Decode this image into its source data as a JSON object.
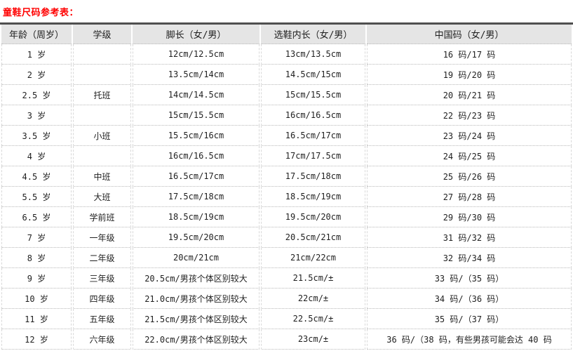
{
  "title": "童鞋尺码参考表：",
  "colors": {
    "title": "#ff0000",
    "header_background": "#e5e5e5",
    "table_top_border": "#4f4f4f",
    "row_border": "#b9b9b9",
    "cell_border": "#d8d8d8",
    "text": "#1f1f1f"
  },
  "table": {
    "headers": [
      "年龄（周岁）",
      "学级",
      "脚长（女/男）",
      "选鞋内长（女/男）",
      "中国码（女/男）"
    ],
    "rows": [
      [
        "1 岁",
        "",
        "12cm/12.5cm",
        "13cm/13.5cm",
        "16 码/17 码"
      ],
      [
        "2 岁",
        "",
        "13.5cm/14cm",
        "14.5cm/15cm",
        "19 码/20 码"
      ],
      [
        "2.5 岁",
        "托班",
        "14cm/14.5cm",
        "15cm/15.5cm",
        "20 码/21 码"
      ],
      [
        "3 岁",
        "",
        "15cm/15.5cm",
        "16cm/16.5cm",
        "22 码/23 码"
      ],
      [
        "3.5 岁",
        "小班",
        "15.5cm/16cm",
        "16.5cm/17cm",
        "23 码/24 码"
      ],
      [
        "4 岁",
        "",
        "16cm/16.5cm",
        "17cm/17.5cm",
        "24 码/25 码"
      ],
      [
        "4.5 岁",
        "中班",
        "16.5cm/17cm",
        "17.5cm/18cm",
        "25 码/26 码"
      ],
      [
        "5.5 岁",
        "大班",
        "17.5cm/18cm",
        "18.5cm/19cm",
        "27 码/28 码"
      ],
      [
        "6.5 岁",
        "学前班",
        "18.5cm/19cm",
        "19.5cm/20cm",
        "29 码/30 码"
      ],
      [
        "7 岁",
        "一年级",
        "19.5cm/20cm",
        "20.5cm/21cm",
        "31 码/32 码"
      ],
      [
        "8 岁",
        "二年级",
        "20cm/21cm",
        "21cm/22cm",
        "32 码/34 码"
      ],
      [
        "9 岁",
        "三年级",
        "20.5cm/男孩个体区别较大",
        "21.5cm/±",
        "33 码/（35 码）"
      ],
      [
        "10 岁",
        "四年级",
        "21.0cm/男孩个体区别较大",
        "22cm/±",
        "34 码/（36 码）"
      ],
      [
        "11 岁",
        "五年级",
        "21.5cm/男孩个体区别较大",
        "22.5cm/±",
        "35 码/（37 码）"
      ],
      [
        "12 岁",
        "六年级",
        "22.0cm/男孩个体区别较大",
        "23cm/±",
        "36 码/（38 码，有些男孩可能会达 40 码"
      ]
    ]
  }
}
